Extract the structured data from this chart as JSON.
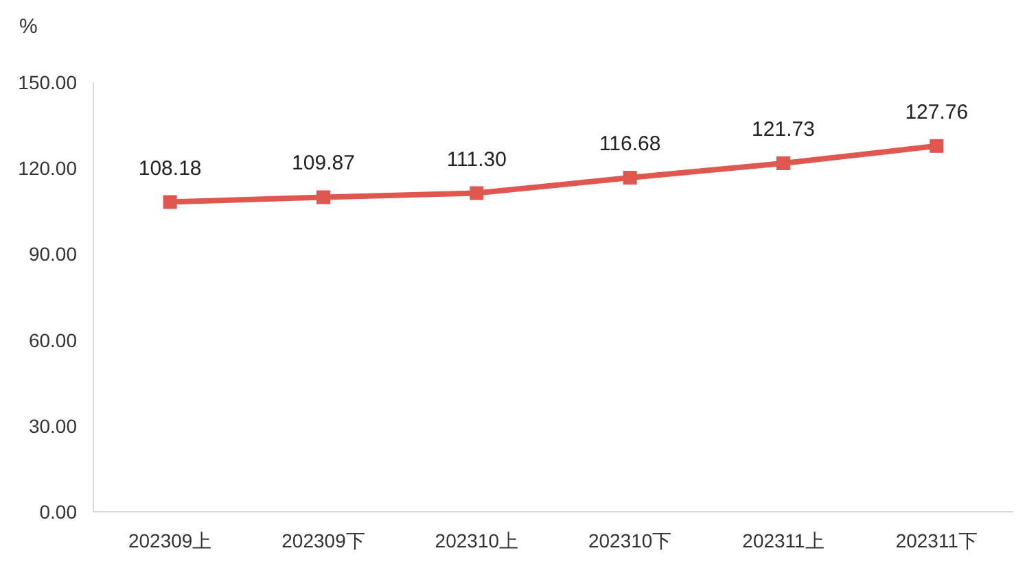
{
  "chart_data": {
    "type": "line",
    "ylabel": "%",
    "categories": [
      "202309上",
      "202309下",
      "202310上",
      "202310下",
      "202311上",
      "202311下"
    ],
    "series": [
      {
        "color": "#e0574f",
        "values": [
          108.18,
          109.87,
          111.3,
          116.68,
          121.73,
          127.76
        ],
        "value_labels": [
          "108.18",
          "109.87",
          "111.30",
          "116.68",
          "121.73",
          "127.76"
        ],
        "marker": "square",
        "line_style": "solid"
      }
    ],
    "ylim": [
      0,
      150
    ],
    "yticks": [
      {
        "value": 0,
        "label": "0.00"
      },
      {
        "value": 30,
        "label": "30.00"
      },
      {
        "value": 60,
        "label": "60.00"
      },
      {
        "value": 90,
        "label": "90.00"
      },
      {
        "value": 120,
        "label": "120.00"
      },
      {
        "value": 150,
        "label": "150.00"
      }
    ]
  }
}
